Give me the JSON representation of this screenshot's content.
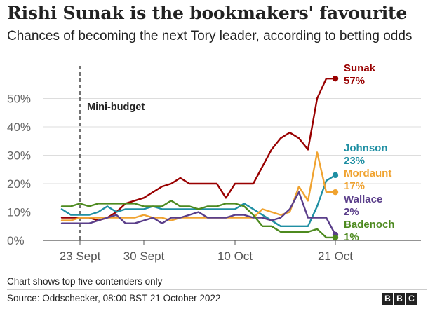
{
  "title": "Rishi Sunak is the bookmakers' favourite",
  "subtitle": "Chances of becoming the next Tory leader, according to betting odds",
  "footnote": "Chart shows top five contenders only",
  "source": "Source: Oddschecker, 08:00 BST 21 October 2022",
  "logo": [
    "B",
    "B",
    "C"
  ],
  "chart_data": {
    "type": "line",
    "x_start": "2022-09-21",
    "x_end": "2022-10-21",
    "xticks": [
      {
        "date": "2022-09-23",
        "label": "23 Sept"
      },
      {
        "date": "2022-09-30",
        "label": "30 Sept"
      },
      {
        "date": "2022-10-10",
        "label": "10 Oct"
      },
      {
        "date": "2022-10-21",
        "label": "21 Oct"
      }
    ],
    "ylim": [
      0,
      57
    ],
    "yticks": [
      0,
      10,
      20,
      30,
      40,
      50
    ],
    "ytick_labels": [
      "0%",
      "10%",
      "20%",
      "30%",
      "40%",
      "50%"
    ],
    "grid": true,
    "annotation": {
      "date": "2022-09-23",
      "label": "Mini-budget"
    },
    "x": [
      "2022-09-21",
      "2022-09-22",
      "2022-09-23",
      "2022-09-24",
      "2022-09-25",
      "2022-09-26",
      "2022-09-27",
      "2022-09-28",
      "2022-09-29",
      "2022-09-30",
      "2022-10-01",
      "2022-10-02",
      "2022-10-03",
      "2022-10-04",
      "2022-10-05",
      "2022-10-06",
      "2022-10-07",
      "2022-10-08",
      "2022-10-09",
      "2022-10-10",
      "2022-10-11",
      "2022-10-12",
      "2022-10-13",
      "2022-10-14",
      "2022-10-15",
      "2022-10-16",
      "2022-10-17",
      "2022-10-18",
      "2022-10-19",
      "2022-10-20",
      "2022-10-21"
    ],
    "series": [
      {
        "name": "Sunak",
        "end_label": "57%",
        "color": "#990000",
        "values": [
          8,
          8,
          8,
          8,
          7,
          8,
          10,
          13,
          14,
          15,
          17,
          19,
          20,
          22,
          20,
          20,
          20,
          20,
          15,
          20,
          20,
          20,
          26,
          32,
          36,
          38,
          36,
          32,
          50,
          57,
          57
        ]
      },
      {
        "name": "Johnson",
        "end_label": "23%",
        "color": "#1f8fa3",
        "values": [
          11,
          9,
          9,
          9,
          10,
          12,
          10,
          11,
          11,
          11,
          12,
          11,
          11,
          11,
          11,
          11,
          11,
          11,
          11,
          11,
          13,
          11,
          9,
          7,
          5,
          5,
          5,
          5,
          12,
          21,
          23
        ]
      },
      {
        "name": "Mordaunt",
        "end_label": "17%",
        "color": "#f0a330",
        "values": [
          7,
          7,
          8,
          8,
          8,
          8,
          8,
          8,
          8,
          9,
          8,
          8,
          7,
          8,
          8,
          8,
          8,
          8,
          8,
          8,
          8,
          8,
          11,
          10,
          9,
          10,
          19,
          14,
          31,
          17,
          17
        ]
      },
      {
        "name": "Wallace",
        "end_label": "2%",
        "color": "#5a3e8a",
        "values": [
          6,
          6,
          6,
          6,
          7,
          8,
          9,
          6,
          6,
          7,
          8,
          6,
          8,
          8,
          9,
          10,
          8,
          8,
          8,
          9,
          9,
          8,
          8,
          7,
          8,
          11,
          17,
          8,
          8,
          8,
          2
        ]
      },
      {
        "name": "Badenoch",
        "end_label": "1%",
        "color": "#4d8a1f",
        "values": [
          12,
          12,
          13,
          12,
          13,
          13,
          13,
          13,
          13,
          12,
          12,
          12,
          14,
          12,
          12,
          11,
          12,
          12,
          13,
          13,
          12,
          9,
          5,
          5,
          3,
          3,
          3,
          3,
          4,
          1,
          1
        ]
      }
    ]
  }
}
